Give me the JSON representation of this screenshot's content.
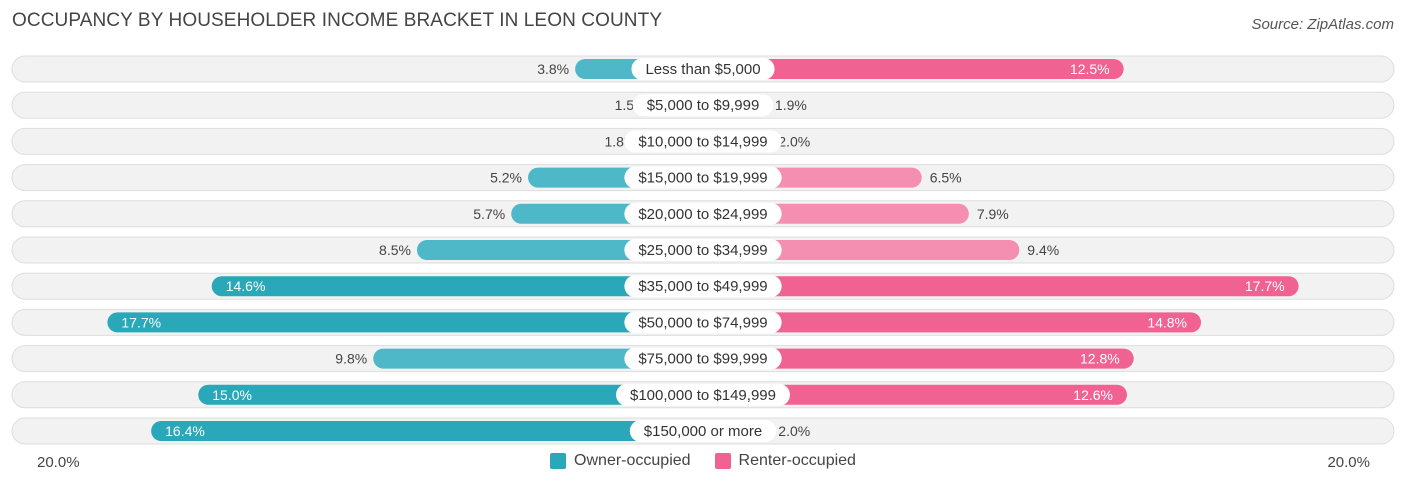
{
  "header": {
    "title": "OCCUPANCY BY HOUSEHOLDER INCOME BRACKET IN LEON COUNTY",
    "source": "Source: ZipAtlas.com"
  },
  "chart_data": {
    "type": "bar",
    "orientation": "horizontal-diverging",
    "title": "OCCUPANCY BY HOUSEHOLDER INCOME BRACKET IN LEON COUNTY",
    "categories": [
      "Less than $5,000",
      "$5,000 to $9,999",
      "$10,000 to $14,999",
      "$15,000 to $19,999",
      "$20,000 to $24,999",
      "$25,000 to $34,999",
      "$35,000 to $49,999",
      "$50,000 to $74,999",
      "$75,000 to $99,999",
      "$100,000 to $149,999",
      "$150,000 or more"
    ],
    "series": [
      {
        "name": "Owner-occupied",
        "color": "#4fb8c8",
        "color_strong": "#2aa7b8",
        "values": [
          3.8,
          1.5,
          1.8,
          5.2,
          5.7,
          8.5,
          14.6,
          17.7,
          9.8,
          15.0,
          16.4
        ],
        "labels": [
          "3.8%",
          "1.5%",
          "1.8%",
          "5.2%",
          "5.7%",
          "8.5%",
          "14.6%",
          "17.7%",
          "9.8%",
          "15.0%",
          "16.4%"
        ]
      },
      {
        "name": "Renter-occupied",
        "color": "#f48fb1",
        "color_strong": "#f06292",
        "values": [
          12.5,
          1.9,
          2.0,
          6.5,
          7.9,
          9.4,
          17.7,
          14.8,
          12.8,
          12.6,
          2.0
        ],
        "labels": [
          "12.5%",
          "1.9%",
          "2.0%",
          "6.5%",
          "7.9%",
          "9.4%",
          "17.7%",
          "14.8%",
          "12.8%",
          "12.6%",
          "2.0%"
        ]
      }
    ],
    "xlim": [
      -20,
      20
    ],
    "axis_left_label": "20.0%",
    "axis_right_label": "20.0%",
    "legend_position": "bottom-center"
  }
}
